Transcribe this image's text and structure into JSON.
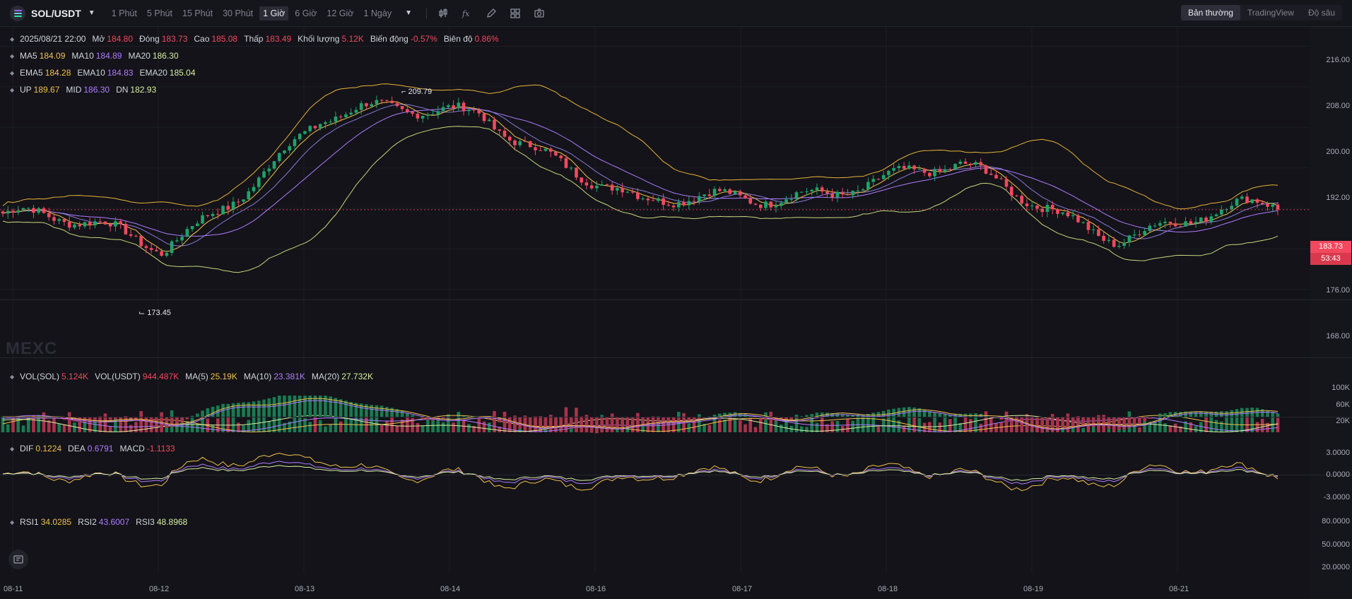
{
  "toolbar": {
    "symbol": "SOL/USDT",
    "intervals": [
      "1 Phút",
      "5 Phút",
      "15 Phút",
      "30 Phút",
      "1 Giờ",
      "6 Giờ",
      "12 Giờ",
      "1 Ngày"
    ],
    "active_interval": "1 Giờ",
    "views": [
      "Bản thường",
      "TradingView",
      "Độ sâu"
    ],
    "active_view": "Bản thường"
  },
  "ohlc": {
    "time": "2025/08/21 22:00",
    "open_label": "Mở",
    "open": "184.80",
    "close_label": "Đóng",
    "close": "183.73",
    "high_label": "Cao",
    "high": "185.08",
    "low_label": "Thấp",
    "low": "183.49",
    "volume_label": "Khối lượng",
    "volume": "5.12K",
    "change_label": "Biến động",
    "change": "-0.57%",
    "amplitude_label": "Biên độ",
    "amplitude": "0.86%"
  },
  "ma": {
    "ma5_label": "MA5",
    "ma5": "184.09",
    "ma10_label": "MA10",
    "ma10": "184.89",
    "ma20_label": "MA20",
    "ma20": "186.30"
  },
  "ema": {
    "ema5_label": "EMA5",
    "ema5": "184.28",
    "ema10_label": "EMA10",
    "ema10": "184.83",
    "ema20_label": "EMA20",
    "ema20": "185.04"
  },
  "boll": {
    "up_label": "UP",
    "up": "189.67",
    "mid_label": "MID",
    "mid": "186.30",
    "dn_label": "DN",
    "dn": "182.93"
  },
  "vol": {
    "sol_label": "VOL(SOL)",
    "sol": "5.124K",
    "usdt_label": "VOL(USDT)",
    "usdt": "944.487K",
    "ma5_label": "MA(5)",
    "ma5": "25.19K",
    "ma10_label": "MA(10)",
    "ma10": "23.381K",
    "ma20_label": "MA(20)",
    "ma20": "27.732K"
  },
  "macd": {
    "dif_label": "DIF",
    "dif": "0.1224",
    "dea_label": "DEA",
    "dea": "0.6791",
    "macd_label": "MACD",
    "macd": "-1.1133"
  },
  "rsi": {
    "rsi1_label": "RSI1",
    "rsi1": "34.0285",
    "rsi2_label": "RSI2",
    "rsi2": "43.6007",
    "rsi3_label": "RSI3",
    "rsi3": "48.8968"
  },
  "price_axis": [
    "216.00",
    "208.00",
    "200.00",
    "192.00",
    "176.00",
    "168.00"
  ],
  "current_price": "183.73",
  "countdown": "53:43",
  "volume_axis": [
    "100K",
    "60K",
    "20K"
  ],
  "macd_axis": [
    "3.0000",
    "0.0000",
    "-3.0000"
  ],
  "rsi_axis": [
    "80.0000",
    "50.0000",
    "20.0000"
  ],
  "time_axis": [
    "08-11",
    "08-12",
    "08-13",
    "08-14",
    "08-16",
    "08-17",
    "08-18",
    "08-19",
    "08-21"
  ],
  "high_marker": "209.79",
  "low_marker": "173.45",
  "watermark": "MEXC",
  "colors": {
    "up": "#1fa36a",
    "down": "#f2495e",
    "ma5": "#f2c14e",
    "ma10": "#b07cff",
    "ma20": "#ffffff",
    "boll": "#e8b339",
    "background": "#131319"
  },
  "chart_data": {
    "type": "line",
    "title": "",
    "series": [
      {
        "name": "SOL/USDT",
        "x": [
          "08-11",
          "08-12",
          "08-13",
          "08-14",
          "08-16",
          "08-17",
          "08-18",
          "08-19",
          "08-21"
        ],
        "values": [
          183.0,
          176.5,
          201.0,
          204.0,
          183.5,
          188.0,
          191.0,
          179.5,
          183.73
        ]
      }
    ],
    "ylim": [
      166.0,
      219.0
    ],
    "markers": {
      "high": 209.79,
      "low": 173.45
    }
  }
}
